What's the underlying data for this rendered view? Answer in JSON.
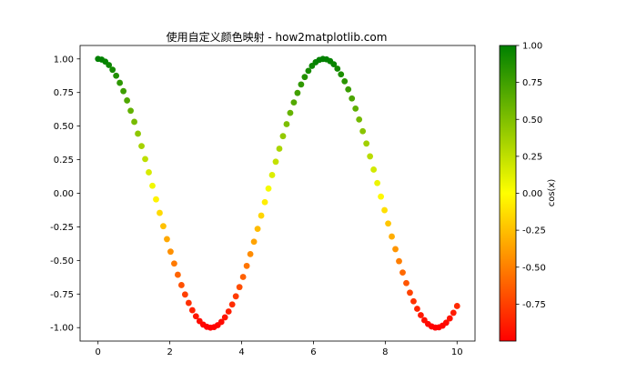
{
  "chart_data": {
    "type": "scatter",
    "title": "使用自定义颜色映射 - how2matplotlib.com",
    "x_range": [
      0,
      10
    ],
    "num_points": 100,
    "function": "y = cos(x)",
    "xlim": [
      -0.5,
      10.5
    ],
    "ylim": [
      -1.1,
      1.1
    ],
    "xticks": [
      0,
      2,
      4,
      6,
      8,
      10
    ],
    "xtick_labels": [
      "0",
      "2",
      "4",
      "6",
      "8",
      "10"
    ],
    "yticks": [
      1.0,
      0.75,
      0.5,
      0.25,
      0.0,
      -0.25,
      -0.5,
      -0.75,
      -1.0
    ],
    "ytick_labels": [
      "1.00",
      "0.75",
      "0.50",
      "0.25",
      "0.00",
      "-0.25",
      "-0.50",
      "-0.75",
      "-1.00"
    ],
    "colorbar": {
      "label": "cos(x)",
      "range": [
        -1,
        1
      ],
      "ticks": [
        1.0,
        0.75,
        0.5,
        0.25,
        0.0,
        -0.25,
        -0.5,
        -0.75
      ],
      "tick_labels": [
        "1.00",
        "0.75",
        "0.50",
        "0.25",
        "0.00",
        "-0.25",
        "-0.50",
        "-0.75"
      ],
      "colormap": [
        "#ff0000",
        "#ffff00",
        "#008000"
      ]
    },
    "grid": false,
    "legend": "none"
  }
}
